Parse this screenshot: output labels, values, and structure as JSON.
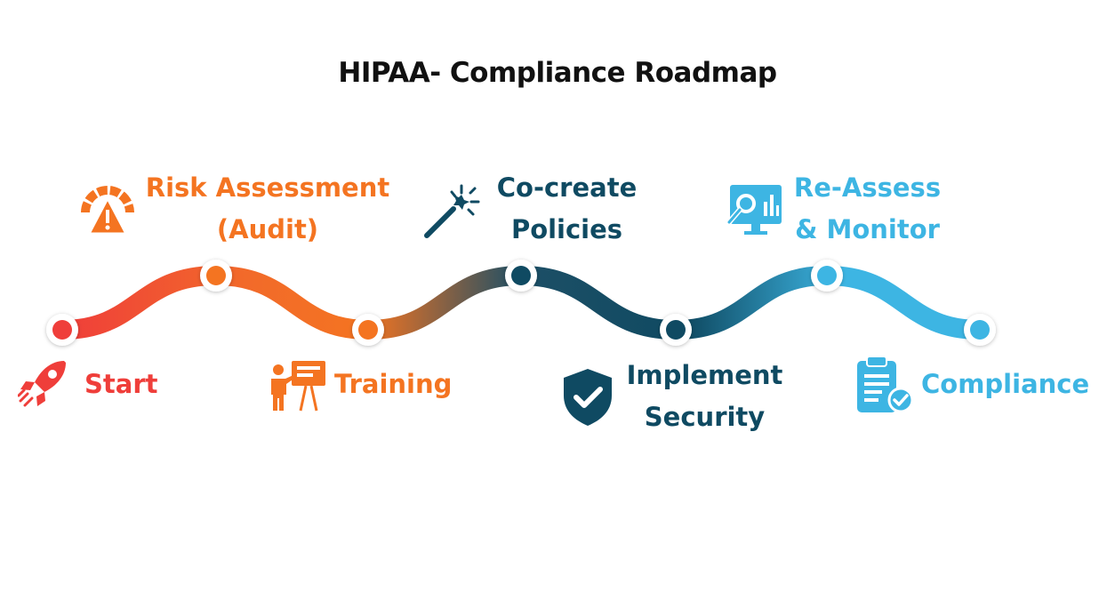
{
  "title": "HIPAA- Compliance Roadmap",
  "colors": {
    "start": "#ef3e3a",
    "orange": "#f47421",
    "navy": "#0f4a62",
    "sky": "#3db5e3",
    "title": "#111111"
  },
  "steps": [
    {
      "id": "start",
      "lines": [
        "Start"
      ],
      "icon": "rocket-icon",
      "color": "#ef3e3a"
    },
    {
      "id": "risk",
      "lines": [
        "Risk Assessment",
        "(Audit)"
      ],
      "icon": "gauge-alert-icon",
      "color": "#f47421"
    },
    {
      "id": "training",
      "lines": [
        "Training"
      ],
      "icon": "presenter-icon",
      "color": "#f47421"
    },
    {
      "id": "policies",
      "lines": [
        "Co-create",
        "Policies"
      ],
      "icon": "magic-wand-icon",
      "color": "#0f4a62"
    },
    {
      "id": "security",
      "lines": [
        "Implement",
        "Security"
      ],
      "icon": "shield-check-icon",
      "color": "#0f4a62"
    },
    {
      "id": "reassess",
      "lines": [
        "Re-Assess",
        "& Monitor"
      ],
      "icon": "monitor-search-icon",
      "color": "#3db5e3"
    },
    {
      "id": "compliance",
      "lines": [
        "Compliance"
      ],
      "icon": "clipboard-check-icon",
      "color": "#3db5e3"
    }
  ]
}
